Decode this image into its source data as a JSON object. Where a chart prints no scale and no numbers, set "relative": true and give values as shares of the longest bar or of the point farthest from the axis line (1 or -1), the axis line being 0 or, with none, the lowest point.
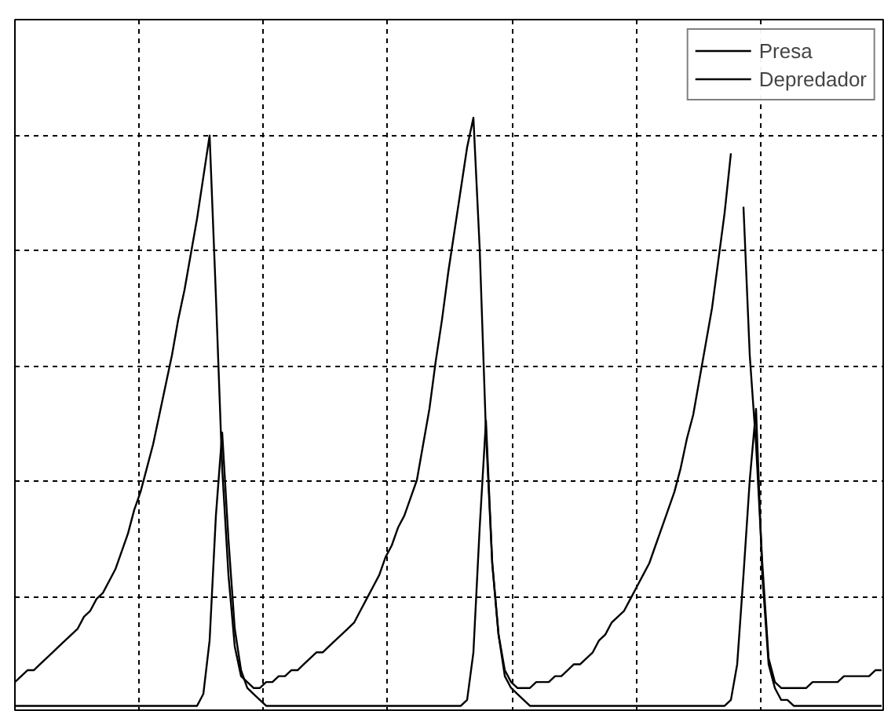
{
  "chart_data": {
    "type": "line",
    "relative": true,
    "grid": true,
    "legend": "top right",
    "line_style": "solid",
    "categories": [
      null,
      null,
      null,
      null,
      null,
      null,
      null,
      null,
      null,
      null,
      null,
      null,
      null,
      null,
      null,
      null,
      null,
      null,
      null,
      null,
      null,
      null,
      null,
      null,
      null,
      null,
      null,
      null,
      null,
      null,
      null,
      null,
      null,
      null,
      null,
      null,
      null,
      null,
      null,
      null,
      null,
      null,
      null,
      null,
      null,
      null,
      null,
      null,
      null,
      null,
      null,
      null,
      null,
      null,
      null,
      null,
      null,
      null,
      null,
      null,
      null,
      null,
      null,
      null,
      null,
      null,
      null,
      null,
      null,
      null,
      null,
      null,
      null,
      null,
      null,
      null,
      null,
      null,
      null,
      null,
      null,
      null,
      null,
      null,
      null,
      null,
      null,
      null,
      null,
      null,
      null,
      null,
      null,
      null,
      null,
      null,
      null,
      null,
      null,
      null,
      null,
      null,
      null,
      null,
      null,
      null,
      null,
      null,
      null,
      null,
      null,
      null,
      null,
      null,
      null,
      null,
      null,
      null,
      null,
      null,
      null,
      null,
      null,
      null,
      null,
      null,
      null,
      null,
      null,
      null,
      null,
      null,
      null,
      null,
      null,
      null,
      null,
      null,
      null
    ],
    "series": [
      {
        "name": "Presa",
        "color": "#000000",
        "values": [
          0.05,
          0.06,
          0.07,
          0.07,
          0.08,
          0.09,
          0.1,
          0.11,
          0.12,
          0.13,
          0.14,
          0.16,
          0.17,
          0.19,
          0.2,
          0.22,
          0.24,
          0.27,
          0.3,
          0.34,
          0.37,
          0.41,
          0.45,
          0.5,
          0.55,
          0.6,
          0.66,
          0.71,
          0.77,
          0.83,
          0.9,
          0.97,
          0.7,
          0.41,
          0.23,
          0.11,
          0.06,
          0.05,
          0.04,
          0.04,
          0.05,
          0.05,
          0.06,
          0.06,
          0.07,
          0.07,
          0.08,
          0.09,
          0.1,
          0.1,
          0.11,
          0.12,
          0.13,
          0.14,
          0.15,
          0.17,
          0.19,
          0.21,
          0.23,
          0.26,
          0.28,
          0.31,
          0.33,
          0.36,
          0.39,
          0.45,
          0.51,
          0.59,
          0.66,
          0.74,
          0.81,
          0.88,
          0.95,
          1.0,
          0.78,
          0.47,
          0.25,
          0.13,
          0.07,
          0.05,
          0.04,
          0.04,
          0.04,
          0.05,
          0.05,
          0.05,
          0.06,
          0.06,
          0.07,
          0.08,
          0.08,
          0.09,
          0.1,
          0.12,
          0.13,
          0.15,
          0.16,
          0.17,
          0.19,
          0.21,
          0.23,
          0.25,
          0.28,
          0.31,
          0.34,
          0.37,
          0.41,
          0.46,
          0.5,
          0.56,
          0.62,
          0.68,
          0.76,
          0.84,
          0.94,
          null,
          0.85,
          0.6,
          0.45,
          0.25,
          0.09,
          0.05,
          0.04,
          0.04,
          0.04,
          0.04,
          0.04,
          0.05,
          0.05,
          0.05,
          0.05,
          0.05,
          0.06,
          0.06,
          0.06,
          0.06,
          0.06,
          0.07,
          0.07
        ]
      },
      {
        "name": "Depredador",
        "color": "#000000",
        "values": [
          0.01,
          0.01,
          0.01,
          0.01,
          0.01,
          0.01,
          0.01,
          0.01,
          0.01,
          0.01,
          0.01,
          0.01,
          0.01,
          0.01,
          0.01,
          0.01,
          0.01,
          0.01,
          0.01,
          0.01,
          0.01,
          0.01,
          0.01,
          0.01,
          0.01,
          0.01,
          0.01,
          0.01,
          0.01,
          0.01,
          0.03,
          0.12,
          0.33,
          0.47,
          0.29,
          0.14,
          0.07,
          0.04,
          0.03,
          0.02,
          0.01,
          0.01,
          0.01,
          0.01,
          0.01,
          0.01,
          0.01,
          0.01,
          0.01,
          0.01,
          0.01,
          0.01,
          0.01,
          0.01,
          0.01,
          0.01,
          0.01,
          0.01,
          0.01,
          0.01,
          0.01,
          0.01,
          0.01,
          0.01,
          0.01,
          0.01,
          0.01,
          0.01,
          0.01,
          0.01,
          0.01,
          0.01,
          0.02,
          0.1,
          0.31,
          0.49,
          0.25,
          0.13,
          0.06,
          0.04,
          0.03,
          0.02,
          0.01,
          0.01,
          0.01,
          0.01,
          0.01,
          0.01,
          0.01,
          0.01,
          0.01,
          0.01,
          0.01,
          0.01,
          0.01,
          0.01,
          0.01,
          0.01,
          0.01,
          0.01,
          0.01,
          0.01,
          0.01,
          0.01,
          0.01,
          0.01,
          0.01,
          0.01,
          0.01,
          0.01,
          0.01,
          0.01,
          0.01,
          0.01,
          0.02,
          0.08,
          0.23,
          0.39,
          0.51,
          0.23,
          0.08,
          0.04,
          0.02,
          0.02,
          0.01,
          0.01,
          0.01,
          0.01,
          0.01,
          0.01,
          0.01,
          0.01,
          0.01,
          0.01,
          0.01,
          0.01,
          0.01,
          0.01,
          0.01
        ]
      }
    ]
  }
}
